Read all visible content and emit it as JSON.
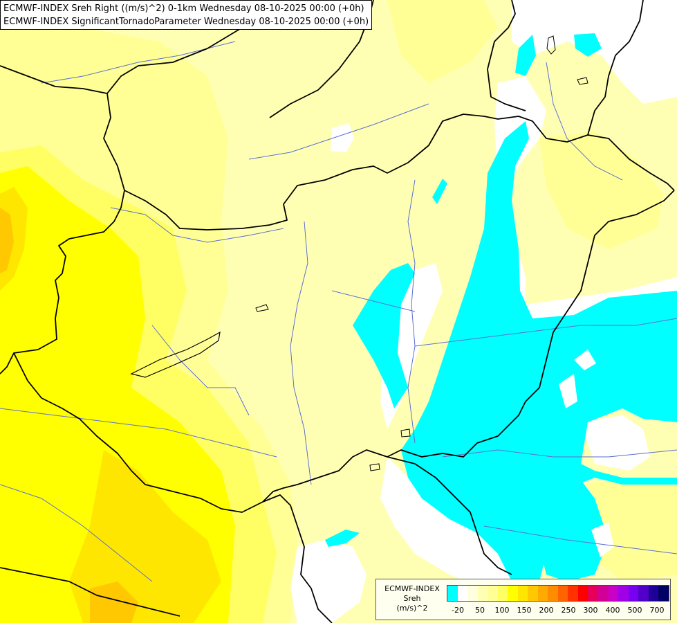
{
  "header": {
    "line1": "ECMWF-INDEX Sreh Right ((m/s)^2) 0-1km Wednesday 08-10-2025 00:00 (+0h)",
    "line2": "ECMWF-INDEX SignificantTornadoParameter Wednesday 08-10-2025 00:00 (+0h)"
  },
  "legend": {
    "title_line1": "ECMWF-INDEX",
    "title_line2": "Sreh",
    "title_line3": "(m/s)^2",
    "colors": [
      "#00ffff",
      "#ffffff",
      "#ffffe0",
      "#ffffb4",
      "#ffff96",
      "#ffff64",
      "#ffff00",
      "#ffe600",
      "#ffc800",
      "#ffaa00",
      "#ff8c00",
      "#ff6400",
      "#ff3200",
      "#ff0000",
      "#e6005a",
      "#d20096",
      "#c800c8",
      "#a000e6",
      "#7800f0",
      "#5000c8",
      "#1e0096",
      "#000064"
    ],
    "tick_labels": [
      "-20",
      "50",
      "100",
      "150",
      "200",
      "250",
      "300",
      "400",
      "500",
      "700"
    ]
  },
  "map": {
    "background": "#ffffb4",
    "layers": [
      "shading-negative-cyan",
      "shading-low-white",
      "shading-moderate-yellow",
      "country-borders",
      "rivers",
      "lakes"
    ]
  }
}
